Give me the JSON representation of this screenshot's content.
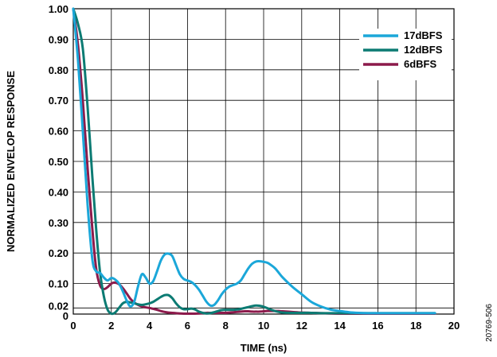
{
  "chart_data": {
    "type": "line",
    "xlabel": "TIME (ns)",
    "ylabel": "NORMALIZED ENVELOP RESPONSE",
    "xlim": [
      0,
      20
    ],
    "ylim": [
      0,
      1
    ],
    "x_ticks": [
      0,
      2,
      4,
      6,
      8,
      10,
      12,
      14,
      16,
      18,
      20
    ],
    "y_ticks": [
      0,
      0.02,
      0.1,
      0.2,
      0.3,
      0.4,
      0.5,
      0.6,
      0.7,
      0.8,
      0.9,
      1.0
    ],
    "x_tick_labels": [
      "0",
      "2",
      "4",
      "6",
      "8",
      "10",
      "12",
      "14",
      "16",
      "18",
      "20"
    ],
    "y_tick_labels": [
      "0",
      "0.02",
      "0.10",
      "0.20",
      "0.30",
      "0.40",
      "0.50",
      "0.60",
      "0.70",
      "0.80",
      "0.90",
      "1.00"
    ],
    "grid": true,
    "legend_position": "top-right",
    "series": [
      {
        "name": "17dBFS",
        "color": "#1ba7d9",
        "x": [
          0,
          0.25,
          0.5,
          0.75,
          1.0,
          1.2,
          1.4,
          1.6,
          1.8,
          2.0,
          2.2,
          2.4,
          2.6,
          2.8,
          3.0,
          3.2,
          3.4,
          3.6,
          3.8,
          4.0,
          4.2,
          4.4,
          4.6,
          4.8,
          5.0,
          5.2,
          5.4,
          5.6,
          5.8,
          6.0,
          6.2,
          6.4,
          6.6,
          6.8,
          7.0,
          7.2,
          7.4,
          7.6,
          7.8,
          8.0,
          8.2,
          8.4,
          8.6,
          8.8,
          9.0,
          9.2,
          9.4,
          9.6,
          9.8,
          10.0,
          10.2,
          10.4,
          10.6,
          10.8,
          11.0,
          11.5,
          12.0,
          12.5,
          13.0,
          13.5,
          14.0,
          14.5,
          15.0,
          15.5,
          16.0,
          16.5,
          17.0,
          17.5,
          18.0,
          18.5,
          19.0
        ],
        "y": [
          1.0,
          0.83,
          0.6,
          0.36,
          0.18,
          0.14,
          0.135,
          0.12,
          0.11,
          0.118,
          0.113,
          0.1,
          0.075,
          0.045,
          0.025,
          0.04,
          0.09,
          0.13,
          0.12,
          0.1,
          0.108,
          0.14,
          0.175,
          0.195,
          0.198,
          0.19,
          0.16,
          0.13,
          0.115,
          0.11,
          0.105,
          0.095,
          0.08,
          0.06,
          0.04,
          0.028,
          0.03,
          0.045,
          0.065,
          0.08,
          0.09,
          0.095,
          0.1,
          0.11,
          0.13,
          0.15,
          0.165,
          0.172,
          0.173,
          0.171,
          0.168,
          0.16,
          0.15,
          0.135,
          0.12,
          0.09,
          0.065,
          0.04,
          0.025,
          0.015,
          0.01,
          0.006,
          0.004,
          0.003,
          0.003,
          0.003,
          0.003,
          0.003,
          0.003,
          0.003,
          0.003
        ]
      },
      {
        "name": "12dBFS",
        "color": "#0c7b73",
        "x": [
          0,
          0.25,
          0.5,
          0.75,
          1.0,
          1.2,
          1.4,
          1.6,
          1.8,
          2.0,
          2.2,
          2.4,
          2.6,
          2.8,
          3.0,
          3.2,
          3.4,
          3.6,
          3.8,
          4.0,
          4.2,
          4.4,
          4.6,
          4.8,
          5.0,
          5.2,
          5.4,
          5.6,
          5.8,
          6.0,
          6.2,
          6.4,
          6.6,
          6.8,
          7.0,
          7.2,
          7.4,
          7.6,
          7.8,
          8.0,
          8.2,
          8.4,
          8.6,
          8.8,
          9.0,
          9.2,
          9.4,
          9.6,
          9.8,
          10.0,
          10.2,
          10.4,
          10.6,
          10.8,
          11.0,
          11.5,
          12.0,
          12.5,
          13.0,
          13.5,
          14.0,
          14.5,
          15.0,
          15.5,
          16.0,
          16.5,
          17.0,
          17.5,
          18.0,
          18.5,
          19.0
        ],
        "y": [
          1.0,
          0.95,
          0.87,
          0.68,
          0.45,
          0.28,
          0.14,
          0.06,
          0.015,
          0.0,
          0.005,
          0.02,
          0.035,
          0.04,
          0.038,
          0.035,
          0.032,
          0.03,
          0.032,
          0.035,
          0.04,
          0.048,
          0.056,
          0.062,
          0.062,
          0.052,
          0.035,
          0.022,
          0.016,
          0.016,
          0.018,
          0.015,
          0.008,
          0.004,
          0.002,
          0.003,
          0.006,
          0.01,
          0.013,
          0.014,
          0.014,
          0.014,
          0.015,
          0.017,
          0.02,
          0.023,
          0.026,
          0.028,
          0.027,
          0.024,
          0.019,
          0.014,
          0.01,
          0.007,
          0.005,
          0.004,
          0.004,
          0.004,
          0.003,
          0.003,
          0.003,
          0.003,
          0.003,
          0.003,
          0.003,
          0.003,
          0.003,
          0.003,
          0.003,
          0.003,
          0.003
        ]
      },
      {
        "name": "6dBFS",
        "color": "#8c1a4b",
        "x": [
          0,
          0.25,
          0.5,
          0.75,
          1.0,
          1.2,
          1.4,
          1.6,
          1.8,
          2.0,
          2.2,
          2.4,
          2.6,
          2.8,
          3.0,
          3.2,
          3.4,
          3.6,
          3.8,
          4.0,
          4.2,
          4.4,
          4.6,
          4.8,
          5.0,
          5.2,
          5.4,
          5.6,
          5.8,
          6.0,
          6.2,
          6.4,
          6.6,
          6.8,
          7.0,
          7.2,
          7.4,
          7.6,
          7.8,
          8.0,
          8.2,
          8.4,
          8.6,
          8.8,
          9.0,
          9.2,
          9.4,
          9.6,
          9.8,
          10.0,
          10.2,
          10.4,
          10.6,
          10.8,
          11.0,
          11.5,
          12.0,
          12.5,
          13.0,
          13.5,
          14.0,
          14.5,
          15.0,
          15.5,
          16.0,
          16.5,
          17.0,
          17.5,
          18.0,
          18.5,
          19.0
        ],
        "y": [
          1.0,
          0.88,
          0.7,
          0.48,
          0.28,
          0.15,
          0.095,
          0.082,
          0.088,
          0.1,
          0.103,
          0.098,
          0.085,
          0.068,
          0.05,
          0.038,
          0.03,
          0.025,
          0.022,
          0.02,
          0.017,
          0.014,
          0.01,
          0.007,
          0.005,
          0.004,
          0.003,
          0.002,
          0.001,
          0.0,
          0.0,
          0.001,
          0.002,
          0.003,
          0.004,
          0.004,
          0.004,
          0.004,
          0.004,
          0.004,
          0.005,
          0.006,
          0.007,
          0.008,
          0.009,
          0.009,
          0.008,
          0.008,
          0.008,
          0.009,
          0.01,
          0.01,
          0.01,
          0.01,
          0.009,
          0.007,
          0.005,
          0.004,
          0.003,
          0.002,
          0.001,
          0.0,
          0.0,
          0.0,
          0.0,
          0.0,
          0.001,
          0.001,
          0.001,
          0.001,
          0.001
        ]
      }
    ]
  },
  "figure_id": "20769-506"
}
